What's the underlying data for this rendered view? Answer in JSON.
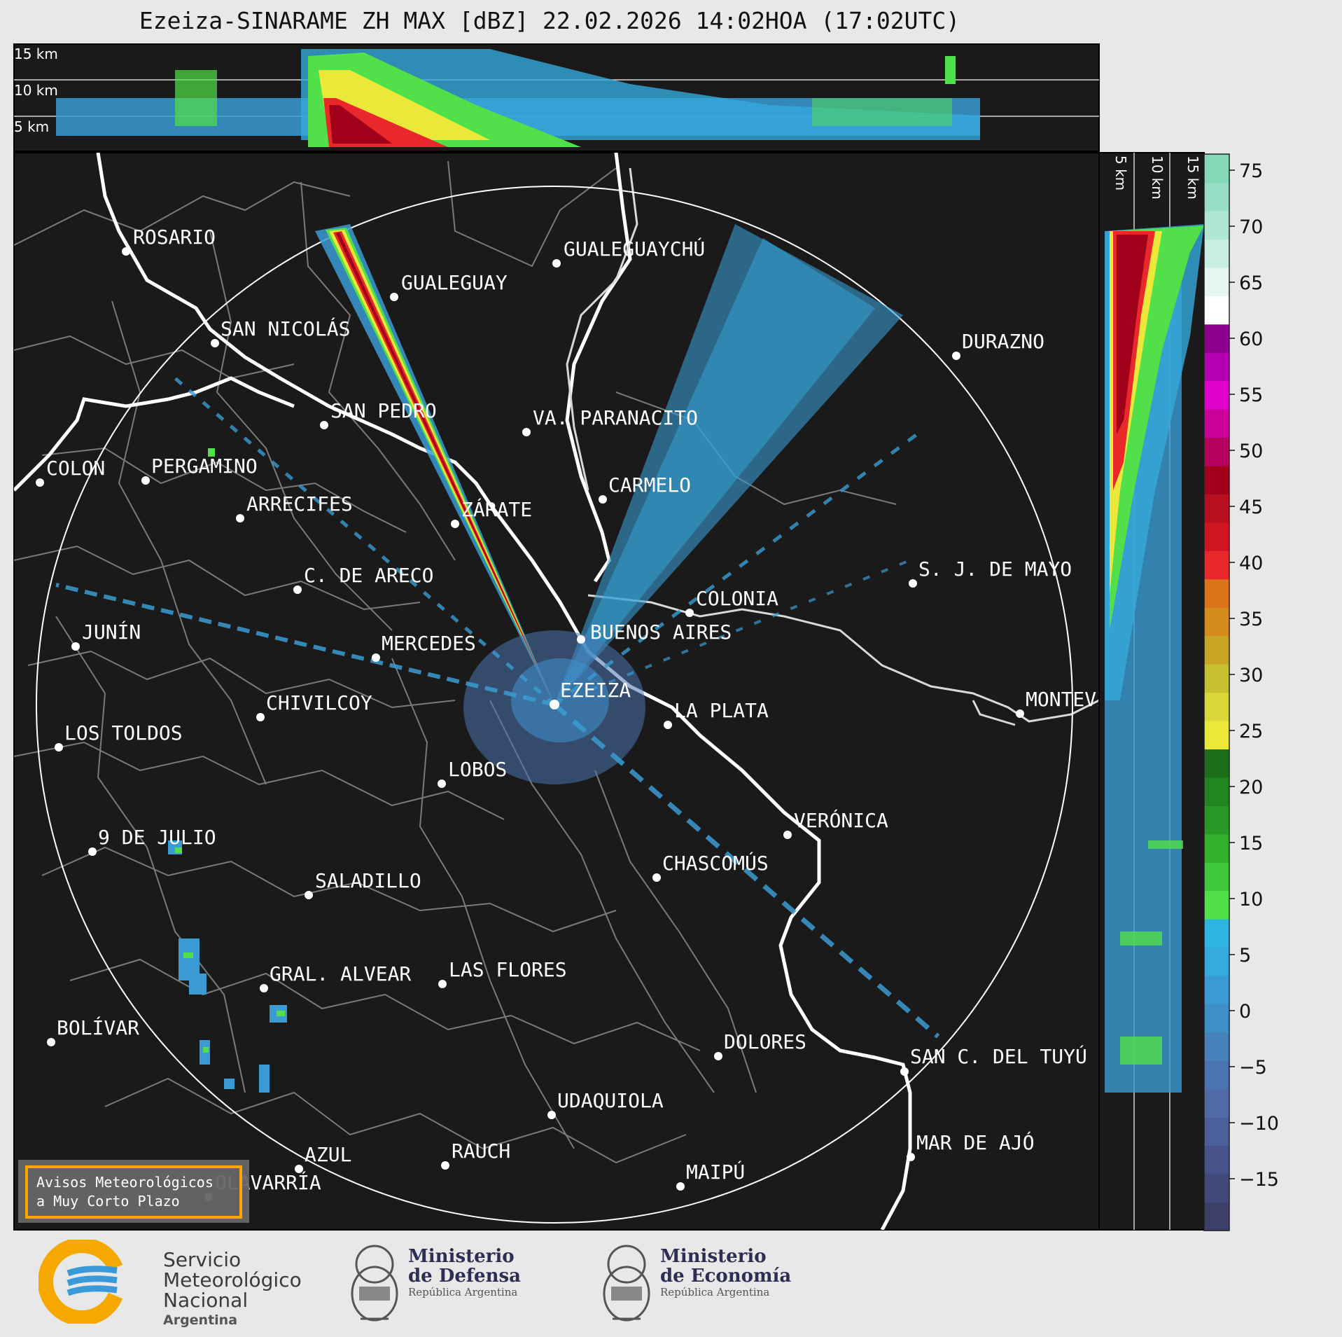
{
  "title": "Ezeiza-SINARAME ZH MAX [dBZ] 22.02.2026 14:02HOA (17:02UTC)",
  "top_panel": {
    "height_labels": [
      "15 km",
      "10 km",
      "5 km"
    ]
  },
  "side_panel": {
    "height_labels": [
      "5 km",
      "10 km",
      "15 km"
    ]
  },
  "colorbar": {
    "ticks": [
      "75",
      "70",
      "65",
      "60",
      "55",
      "50",
      "45",
      "40",
      "35",
      "30",
      "25",
      "20",
      "15",
      "10",
      "5",
      "0",
      "−5",
      "−10",
      "−15"
    ],
    "colors": [
      "#3b3f6a",
      "#40497a",
      "#45538a",
      "#4a5e99",
      "#4f6aa6",
      "#4a74b0",
      "#4681bc",
      "#3f8ec8",
      "#3a9bd2",
      "#34a9dc",
      "#2db5e0",
      "#52e04a",
      "#3fc93a",
      "#31b02c",
      "#289826",
      "#22851f",
      "#1b6f19",
      "#ebe83a",
      "#d9d637",
      "#c6c02f",
      "#c9a526",
      "#d48d1d",
      "#d9741a",
      "#e8282a",
      "#d01422",
      "#b80e1e",
      "#a0001a",
      "#b6005e",
      "#cc0099",
      "#e000cc",
      "#b400b0",
      "#8c0090",
      "#ffffff",
      "#e4f6ef",
      "#c7eee0",
      "#aee6d2",
      "#97dec4",
      "#84d8b8"
    ]
  },
  "cities": [
    {
      "name": "ROSARIO"
    },
    {
      "name": "GUALEGUAYCHÚ"
    },
    {
      "name": "GUALEGUAY"
    },
    {
      "name": "SAN NICOLÁS"
    },
    {
      "name": "DURAZNO"
    },
    {
      "name": "SAN PEDRO"
    },
    {
      "name": "VA. PARANACITO"
    },
    {
      "name": "COLON"
    },
    {
      "name": "PERGAMINO"
    },
    {
      "name": "CARMELO"
    },
    {
      "name": "ARRECIFES"
    },
    {
      "name": "ZÁRATE"
    },
    {
      "name": "S. J. DE MAYO"
    },
    {
      "name": "C. DE ARECO"
    },
    {
      "name": "COLONIA"
    },
    {
      "name": "JUNÍN"
    },
    {
      "name": "BUENOS AIRES"
    },
    {
      "name": "MERCEDES"
    },
    {
      "name": "EZEIZA"
    },
    {
      "name": "MONTEVIDEO"
    },
    {
      "name": "CHIVILCOY"
    },
    {
      "name": "LA PLATA"
    },
    {
      "name": "LOS TOLDOS"
    },
    {
      "name": "LOBOS"
    },
    {
      "name": "VERÓNICA"
    },
    {
      "name": "9 DE JULIO"
    },
    {
      "name": "CHASCOMÚS"
    },
    {
      "name": "SALADILLO"
    },
    {
      "name": "GRAL. ALVEAR"
    },
    {
      "name": "LAS FLORES"
    },
    {
      "name": "BOLÍVAR"
    },
    {
      "name": "DOLORES"
    },
    {
      "name": "SAN C. DEL TUYÚ"
    },
    {
      "name": "UDAQUIOLA"
    },
    {
      "name": "MAR DE AJÓ"
    },
    {
      "name": "AZUL"
    },
    {
      "name": "RAUCH"
    },
    {
      "name": "OLAVARRÍA"
    },
    {
      "name": "MAIPÚ"
    }
  ],
  "warning_box": {
    "line1": "Avisos Meteorológicos",
    "line2": "a Muy Corto Plazo"
  },
  "logos": {
    "smn": {
      "line1": "Servicio",
      "line2": "Meteorológico",
      "line3": "Nacional",
      "country": "Argentina"
    },
    "defensa": {
      "line1": "Ministerio",
      "line2": "de Defensa",
      "sub": "República Argentina"
    },
    "economia": {
      "line1": "Ministerio",
      "line2": "de Economía",
      "sub": "República Argentina"
    }
  }
}
